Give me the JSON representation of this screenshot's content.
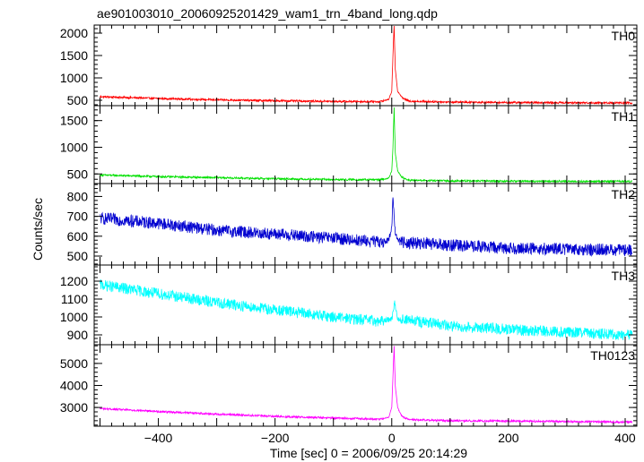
{
  "title": "ae901003010_20060925201429_wam1_trn_4band_long.qdp",
  "chart_data": {
    "type": "line",
    "title": "ae901003010_20060925201429_wam1_trn_4band_long.qdp",
    "xlabel": "Time [sec] 0 = 2006/09/25 20:14:29",
    "ylabel": "Counts/sec",
    "xlim": [
      -510,
      420
    ],
    "x_ticks": [
      -400,
      -200,
      0,
      200,
      400
    ],
    "x_tick_labels": [
      "−400",
      "−200",
      "0",
      "200",
      "400"
    ],
    "grid": false,
    "panels": [
      {
        "name": "TH0",
        "color": "#ff0000",
        "ylim": [
          380,
          2180
        ],
        "y_ticks": [
          500,
          1000,
          1500,
          2000
        ],
        "x": [
          -500,
          -400,
          -300,
          -200,
          -100,
          -20,
          -5,
          0,
          2,
          4,
          6,
          10,
          15,
          20,
          30,
          100,
          200,
          300,
          400
        ],
        "y": [
          580,
          540,
          510,
          490,
          475,
          470,
          520,
          700,
          1500,
          2200,
          1200,
          700,
          620,
          540,
          480,
          460,
          450,
          445,
          440
        ]
      },
      {
        "name": "TH1",
        "color": "#00e000",
        "ylim": [
          320,
          1780
        ],
        "y_ticks": [
          500,
          1000,
          1500
        ],
        "x": [
          -500,
          -400,
          -300,
          -200,
          -100,
          -20,
          -5,
          0,
          2,
          4,
          6,
          10,
          15,
          20,
          30,
          100,
          200,
          300,
          400
        ],
        "y": [
          480,
          450,
          430,
          410,
          395,
          390,
          420,
          560,
          1000,
          1750,
          900,
          560,
          470,
          420,
          380,
          370,
          365,
          360,
          360
        ]
      },
      {
        "name": "TH2",
        "color": "#0000d0",
        "ylim": [
          455,
          865
        ],
        "y_ticks": [
          500,
          600,
          700,
          800
        ],
        "x": [
          -500,
          -400,
          -300,
          -200,
          -100,
          -20,
          -5,
          0,
          2,
          4,
          6,
          10,
          20,
          100,
          200,
          300,
          400
        ],
        "y": [
          690,
          665,
          630,
          610,
          590,
          570,
          580,
          640,
          810,
          700,
          620,
          585,
          570,
          555,
          540,
          535,
          530
        ]
      },
      {
        "name": "TH3",
        "color": "#00ffff",
        "ylim": [
          845,
          1290
        ],
        "y_ticks": [
          900,
          1000,
          1100,
          1200
        ],
        "x": [
          -500,
          -400,
          -300,
          -200,
          -100,
          -20,
          0,
          5,
          10,
          100,
          200,
          300,
          400
        ],
        "y": [
          1180,
          1130,
          1080,
          1040,
          1000,
          975,
          990,
          1080,
          990,
          950,
          930,
          915,
          900
        ]
      },
      {
        "name": "TH0123",
        "color": "#ff00ff",
        "ylim": [
          2150,
          5850
        ],
        "y_ticks": [
          3000,
          4000,
          5000
        ],
        "x": [
          -500,
          -400,
          -300,
          -200,
          -100,
          -20,
          -5,
          0,
          2,
          4,
          6,
          10,
          15,
          20,
          30,
          100,
          200,
          300,
          400
        ],
        "y": [
          2950,
          2820,
          2700,
          2600,
          2520,
          2470,
          2560,
          3000,
          4400,
          5800,
          4000,
          3000,
          2700,
          2550,
          2450,
          2400,
          2380,
          2360,
          2340
        ]
      }
    ]
  }
}
